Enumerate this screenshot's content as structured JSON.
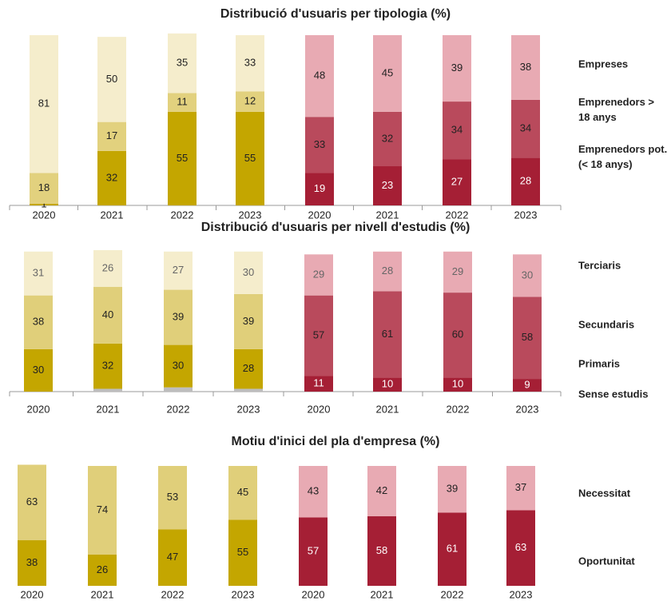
{
  "chart_data": [
    {
      "type": "stacked-bar",
      "title": "Distribució d'usuaris per tipologia (%)",
      "categories": [
        "2020",
        "2021",
        "2022",
        "2023",
        "2020",
        "2021",
        "2022",
        "2023"
      ],
      "axis_line": true,
      "series": [
        {
          "name": "Emprenedors pot. (< 18 anys)",
          "label_colors": [
            "#222",
            "#222",
            "#222",
            "#222",
            "#fff",
            "#fff",
            "#fff",
            "#fff"
          ],
          "colors": [
            "#c4a600",
            "#c4a600",
            "#c4a600",
            "#c4a600",
            "#a51f35",
            "#a51f35",
            "#a51f35",
            "#a51f35"
          ],
          "values": [
            1,
            32,
            55,
            55,
            19,
            23,
            27,
            28
          ]
        },
        {
          "name": "Emprenedors > 18 anys",
          "label_colors": [
            "#222",
            "#222",
            "#222",
            "#222",
            "#222",
            "#222",
            "#222",
            "#222"
          ],
          "colors": [
            "#e2d17e",
            "#e2d17e",
            "#e2d17e",
            "#e2d17e",
            "#b94a5c",
            "#b94a5c",
            "#b94a5c",
            "#b94a5c"
          ],
          "values": [
            18,
            17,
            11,
            12,
            33,
            32,
            34,
            34
          ]
        },
        {
          "name": "Empreses",
          "label_colors": [
            "#222",
            "#222",
            "#222",
            "#222",
            "#222",
            "#222",
            "#222",
            "#222"
          ],
          "colors": [
            "#f5edcc",
            "#f5edcc",
            "#f5edcc",
            "#f5edcc",
            "#e8aab3",
            "#e8aab3",
            "#e8aab3",
            "#e8aab3"
          ],
          "values": [
            81,
            50,
            35,
            33,
            48,
            45,
            39,
            38
          ]
        }
      ]
    },
    {
      "type": "stacked-bar",
      "title": "Distribució d'usuaris per nivell d'estudis (%)",
      "categories": [
        "2020",
        "2021",
        "2022",
        "2023",
        "2020",
        "2021",
        "2022",
        "2023"
      ],
      "axis_line": true,
      "series": [
        {
          "name": "Sense estudis",
          "show_labels": false,
          "colors": [
            "#bdbdbd",
            "#bdbdbd",
            "#bdbdbd",
            "#bdbdbd",
            "#bdbdbd",
            "#bdbdbd",
            "#bdbdbd",
            "#bdbdbd"
          ],
          "values": [
            0,
            2,
            3,
            2,
            0,
            0,
            0,
            0
          ]
        },
        {
          "name": "Primaris",
          "label_colors": [
            "#222",
            "#222",
            "#222",
            "#222",
            "#fff",
            "#fff",
            "#fff",
            "#fff"
          ],
          "colors": [
            "#c4a600",
            "#c4a600",
            "#c4a600",
            "#c4a600",
            "#a51f35",
            "#a51f35",
            "#a51f35",
            "#a51f35"
          ],
          "values": [
            30,
            32,
            30,
            28,
            11,
            10,
            10,
            9
          ]
        },
        {
          "name": "Secundaris",
          "label_colors": [
            "#222",
            "#222",
            "#222",
            "#222",
            "#222",
            "#222",
            "#222",
            "#222"
          ],
          "colors": [
            "#e0cf7a",
            "#e0cf7a",
            "#e0cf7a",
            "#e0cf7a",
            "#b94a5c",
            "#b94a5c",
            "#b94a5c",
            "#b94a5c"
          ],
          "values": [
            38,
            40,
            39,
            39,
            57,
            61,
            60,
            58
          ]
        },
        {
          "name": "Terciaris",
          "label_colors": [
            "#666",
            "#666",
            "#666",
            "#666",
            "#666",
            "#666",
            "#666",
            "#666"
          ],
          "colors": [
            "#f5edcc",
            "#f5edcc",
            "#f5edcc",
            "#f5edcc",
            "#e8aab3",
            "#e8aab3",
            "#e8aab3",
            "#e8aab3"
          ],
          "values": [
            31,
            26,
            27,
            30,
            29,
            28,
            29,
            30
          ]
        }
      ]
    },
    {
      "type": "stacked-bar",
      "title": "Motiu d'inici del pla d'empresa (%)",
      "categories": [
        "2020",
        "2021",
        "2022",
        "2023",
        "2020",
        "2021",
        "2022",
        "2023"
      ],
      "axis_line": false,
      "series": [
        {
          "name": "Oportunitat",
          "label_colors": [
            "#222",
            "#222",
            "#222",
            "#222",
            "#fff",
            "#fff",
            "#fff",
            "#fff"
          ],
          "colors": [
            "#c4a600",
            "#c4a600",
            "#c4a600",
            "#c4a600",
            "#a51f35",
            "#a51f35",
            "#a51f35",
            "#a51f35"
          ],
          "values": [
            38,
            26,
            47,
            55,
            57,
            58,
            61,
            63
          ]
        },
        {
          "name": "Necessitat",
          "label_colors": [
            "#222",
            "#222",
            "#222",
            "#222",
            "#222",
            "#222",
            "#222",
            "#222"
          ],
          "colors": [
            "#e0cf7a",
            "#e0cf7a",
            "#e0cf7a",
            "#e0cf7a",
            "#e8aab3",
            "#e8aab3",
            "#e8aab3",
            "#e8aab3"
          ],
          "values": [
            63,
            74,
            53,
            45,
            43,
            42,
            39,
            37
          ]
        }
      ]
    }
  ]
}
